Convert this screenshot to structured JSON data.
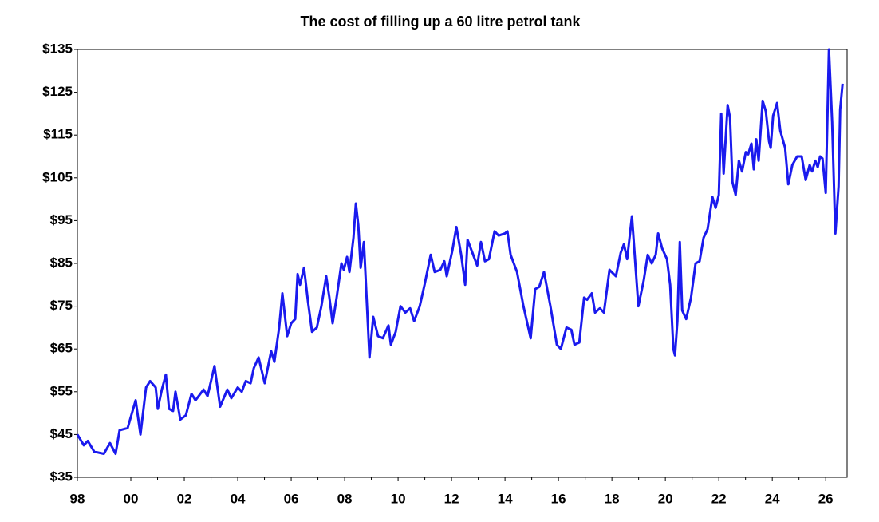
{
  "chart_data": {
    "type": "line",
    "title": "The cost of filling up a 60 litre petrol tank",
    "color": "#1a1aee",
    "x": [
      1998.0,
      1998.24,
      1998.39,
      1998.63,
      1998.99,
      1999.22,
      1999.43,
      1999.58,
      1999.88,
      2000.18,
      2000.36,
      2000.57,
      2000.72,
      2000.93,
      2001.01,
      2001.16,
      2001.31,
      2001.43,
      2001.58,
      2001.67,
      2001.85,
      2002.06,
      2002.27,
      2002.42,
      2002.72,
      2002.87,
      2003.13,
      2003.34,
      2003.61,
      2003.76,
      2004.0,
      2004.15,
      2004.3,
      2004.48,
      2004.6,
      2004.78,
      2005.01,
      2005.25,
      2005.37,
      2005.55,
      2005.67,
      2005.85,
      2006.0,
      2006.15,
      2006.24,
      2006.33,
      2006.48,
      2006.63,
      2006.78,
      2006.96,
      2007.13,
      2007.31,
      2007.43,
      2007.55,
      2007.7,
      2007.88,
      2007.97,
      2008.09,
      2008.18,
      2008.33,
      2008.42,
      2008.51,
      2008.6,
      2008.72,
      2008.93,
      2009.07,
      2009.25,
      2009.43,
      2009.64,
      2009.73,
      2009.91,
      2010.09,
      2010.27,
      2010.45,
      2010.6,
      2010.81,
      2010.99,
      2011.22,
      2011.37,
      2011.58,
      2011.73,
      2011.82,
      2012.03,
      2012.18,
      2012.36,
      2012.51,
      2012.6,
      2012.75,
      2012.96,
      2013.1,
      2013.25,
      2013.4,
      2013.61,
      2013.76,
      2014.0,
      2014.09,
      2014.21,
      2014.45,
      2014.69,
      2014.96,
      2015.13,
      2015.28,
      2015.46,
      2015.7,
      2015.94,
      2016.09,
      2016.3,
      2016.48,
      2016.6,
      2016.78,
      2016.96,
      2017.07,
      2017.25,
      2017.37,
      2017.55,
      2017.7,
      2017.91,
      2018.15,
      2018.33,
      2018.45,
      2018.57,
      2018.75,
      2018.99,
      2019.19,
      2019.34,
      2019.49,
      2019.64,
      2019.73,
      2019.88,
      2020.06,
      2020.18,
      2020.3,
      2020.36,
      2020.45,
      2020.54,
      2020.63,
      2020.78,
      2020.96,
      2021.13,
      2021.28,
      2021.43,
      2021.58,
      2021.76,
      2021.88,
      2022.0,
      2022.09,
      2022.18,
      2022.33,
      2022.42,
      2022.51,
      2022.63,
      2022.75,
      2022.87,
      2023.01,
      2023.1,
      2023.22,
      2023.31,
      2023.4,
      2023.49,
      2023.64,
      2023.76,
      2023.88,
      2023.94,
      2024.03,
      2024.18,
      2024.3,
      2024.48,
      2024.6,
      2024.75,
      2024.93,
      2025.1,
      2025.25,
      2025.4,
      2025.49,
      2025.61,
      2025.7,
      2025.79,
      2025.88,
      2026.0,
      2026.12,
      2026.24,
      2026.36,
      2026.48,
      2026.54,
      2026.63
    ],
    "values": [
      45,
      42.5,
      43.5,
      41,
      40.5,
      43,
      40.5,
      46,
      46.5,
      53,
      45,
      56,
      57.5,
      56,
      51,
      55.5,
      59,
      51,
      50.5,
      55,
      48.5,
      49.5,
      54.5,
      53,
      55.5,
      54,
      61,
      51.5,
      55.5,
      53.5,
      56,
      55,
      57.5,
      57,
      60.5,
      63,
      57,
      64.5,
      62,
      70,
      78,
      68,
      71,
      72,
      82.5,
      80,
      84,
      76,
      69,
      70,
      75,
      82,
      77,
      71,
      77,
      85,
      83.5,
      86.5,
      83,
      91,
      99,
      94,
      84,
      90,
      63,
      72.5,
      68,
      67.5,
      70.5,
      66,
      69,
      75,
      73.5,
      74.5,
      71.5,
      75,
      80,
      87,
      83,
      83.5,
      85.5,
      82,
      88,
      93.5,
      87,
      80,
      90.5,
      88,
      84.5,
      90,
      85.5,
      86,
      92.5,
      91.5,
      92,
      92.5,
      87,
      83,
      75,
      67.5,
      79,
      79.5,
      83,
      75,
      66,
      65,
      70,
      69.5,
      66,
      66.5,
      77,
      76.5,
      78,
      73.5,
      74.5,
      73.5,
      83.5,
      82,
      87.5,
      89.5,
      86,
      96,
      75,
      81,
      87,
      85,
      87,
      92,
      88.5,
      86,
      80,
      65,
      63.5,
      71.5,
      90,
      74,
      72,
      77,
      85,
      85.5,
      91,
      93,
      100.5,
      98,
      101,
      120,
      106,
      122,
      119,
      104,
      101,
      109,
      106.5,
      111,
      110.5,
      113,
      107,
      114,
      109,
      123,
      120.5,
      113.5,
      112,
      119.5,
      122.5,
      116,
      112,
      103.5,
      108,
      110,
      110,
      104.5,
      108,
      106.5,
      109,
      107.5,
      110,
      109.5,
      101.5,
      135,
      118,
      92,
      103,
      121,
      127
    ],
    "xlim": [
      1998,
      2026.8
    ],
    "xticks": [
      {
        "value": 1998,
        "label": "98"
      },
      {
        "value": 2000,
        "label": "00"
      },
      {
        "value": 2002,
        "label": "02"
      },
      {
        "value": 2004,
        "label": "04"
      },
      {
        "value": 2006,
        "label": "06"
      },
      {
        "value": 2008,
        "label": "08"
      },
      {
        "value": 2010,
        "label": "10"
      },
      {
        "value": 2012,
        "label": "12"
      },
      {
        "value": 2014,
        "label": "14"
      },
      {
        "value": 2016,
        "label": "16"
      },
      {
        "value": 2018,
        "label": "18"
      },
      {
        "value": 2020,
        "label": "20"
      },
      {
        "value": 2022,
        "label": "22"
      },
      {
        "value": 2024,
        "label": "24"
      },
      {
        "value": 2026,
        "label": "26"
      }
    ],
    "ylim": [
      35,
      135
    ],
    "yticks": [
      {
        "value": 35,
        "label": "$35"
      },
      {
        "value": 45,
        "label": "$45"
      },
      {
        "value": 55,
        "label": "$55"
      },
      {
        "value": 65,
        "label": "$65"
      },
      {
        "value": 75,
        "label": "$75"
      },
      {
        "value": 85,
        "label": "$85"
      },
      {
        "value": 95,
        "label": "$95"
      },
      {
        "value": 105,
        "label": "$105"
      },
      {
        "value": 115,
        "label": "$115"
      },
      {
        "value": 125,
        "label": "$125"
      },
      {
        "value": 135,
        "label": "$135"
      }
    ],
    "grid": false
  }
}
